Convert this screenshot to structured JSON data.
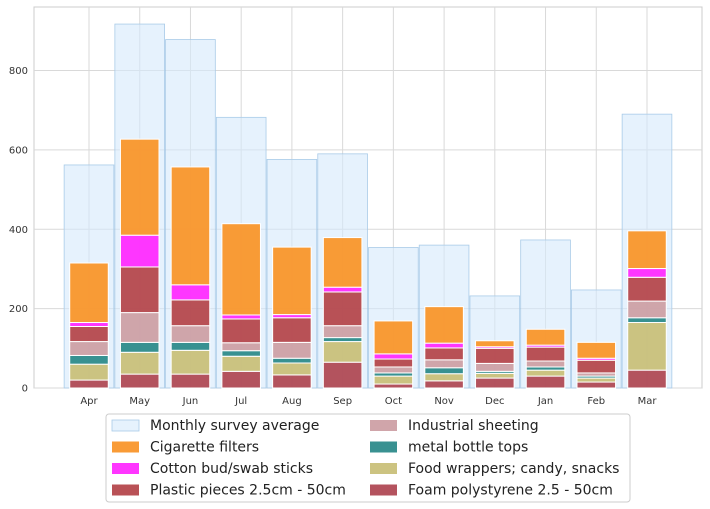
{
  "chart_data": {
    "type": "bar",
    "stacked": true,
    "title": "",
    "xlabel": "",
    "ylabel": "",
    "ylim": [
      0,
      960
    ],
    "yticks": [
      0,
      200,
      400,
      600,
      800
    ],
    "grid": true,
    "legend_position": "bottom-center",
    "categories": [
      "Apr",
      "May",
      "Jun",
      "Jul",
      "Aug",
      "Sep",
      "Oct",
      "Nov",
      "Dec",
      "Jan",
      "Feb",
      "Mar"
    ],
    "background_series": {
      "name": "Monthly survey average",
      "color": "#d6e9fb",
      "values": [
        562,
        917,
        878,
        682,
        576,
        590,
        354,
        360,
        232,
        373,
        247,
        690
      ]
    },
    "series": [
      {
        "name": "Foam polystyrene  2.5 - 50cm",
        "color": "#b04a55",
        "values": [
          20,
          35,
          35,
          42,
          33,
          65,
          10,
          18,
          25,
          30,
          15,
          45
        ]
      },
      {
        "name": "Food wrappers; candy, snacks",
        "color": "#c9c07a",
        "values": [
          40,
          55,
          60,
          38,
          30,
          52,
          20,
          18,
          12,
          15,
          10,
          120
        ]
      },
      {
        "name": "metal bottle tops",
        "color": "#2e8b8b",
        "values": [
          22,
          25,
          20,
          14,
          12,
          10,
          8,
          15,
          5,
          8,
          5,
          12
        ]
      },
      {
        "name": "Industrial sheeting",
        "color": "#cda0a5",
        "values": [
          35,
          75,
          42,
          20,
          40,
          30,
          15,
          20,
          20,
          15,
          8,
          42
        ]
      },
      {
        "name": "Plastic pieces 2.5cm - 50cm",
        "color": "#b5484d",
        "values": [
          38,
          115,
          65,
          60,
          62,
          85,
          20,
          30,
          38,
          35,
          32,
          60
        ]
      },
      {
        "name": "Cotton bud/swab sticks",
        "color": "#ff2bff",
        "values": [
          10,
          80,
          38,
          10,
          8,
          12,
          13,
          12,
          4,
          5,
          5,
          22
        ]
      },
      {
        "name": "Cigarette filters",
        "color": "#f9962b",
        "values": [
          150,
          242,
          297,
          230,
          170,
          125,
          83,
          92,
          15,
          40,
          40,
          95
        ]
      }
    ],
    "legend_order": [
      "Monthly survey average",
      "Cigarette filters",
      "Cotton bud/swab sticks",
      "Plastic pieces 2.5cm - 50cm",
      "Industrial sheeting",
      "metal bottle tops",
      "Food wrappers; candy, snacks",
      "Foam polystyrene  2.5 - 50cm"
    ]
  }
}
